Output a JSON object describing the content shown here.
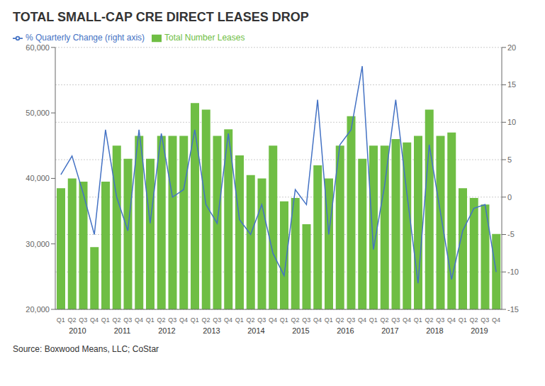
{
  "chart_data": {
    "type": "bar",
    "title": "TOTAL SMALL-CAP CRE DIRECT LEASES DROP",
    "source": "Source: Boxwood Means, LLC; CoStar",
    "categories": [
      "Q1",
      "Q2",
      "Q3",
      "Q4",
      "Q1",
      "Q2",
      "Q3",
      "Q4",
      "Q1",
      "Q2",
      "Q3",
      "Q4",
      "Q1",
      "Q2",
      "Q3",
      "Q4",
      "Q1",
      "Q2",
      "Q3",
      "Q4",
      "Q1",
      "Q2",
      "Q3",
      "Q4",
      "Q1",
      "Q2",
      "Q3",
      "Q4",
      "Q1",
      "Q2",
      "Q3",
      "Q4",
      "Q1",
      "Q2",
      "Q3",
      "Q4",
      "Q1",
      "Q2",
      "Q3",
      "Q4"
    ],
    "category_groups": [
      "2010",
      "2010",
      "2010",
      "2010",
      "2011",
      "2011",
      "2011",
      "2011",
      "2012",
      "2012",
      "2012",
      "2012",
      "2013",
      "2013",
      "2013",
      "2013",
      "2014",
      "2014",
      "2014",
      "2014",
      "2015",
      "2015",
      "2015",
      "2015",
      "2016",
      "2016",
      "2016",
      "2016",
      "2017",
      "2017",
      "2017",
      "2017",
      "2018",
      "2018",
      "2018",
      "2018",
      "2019",
      "2019",
      "2019",
      "2019"
    ],
    "series": [
      {
        "name": "Total Number Leases",
        "type": "bar",
        "color": "#6fbe44",
        "values": [
          38500,
          40000,
          39500,
          29500,
          39500,
          45000,
          43000,
          46500,
          43000,
          46500,
          46500,
          46500,
          51500,
          50500,
          46500,
          47500,
          43500,
          40500,
          40000,
          45000,
          36500,
          37000,
          33000,
          42000,
          40000,
          45000,
          49500,
          43000,
          45000,
          45000,
          46000,
          45500,
          46500,
          50500,
          46500,
          47000,
          38500,
          37000,
          36000,
          31500
        ]
      },
      {
        "name": "% Quarterly Change (right axis)",
        "type": "line",
        "color": "#4472c4",
        "axis": "y2",
        "values": [
          3.0,
          5.5,
          0.5,
          -5.0,
          9.0,
          0.0,
          -4.5,
          9.0,
          -3.5,
          8.5,
          0.0,
          1.0,
          9.0,
          -1.0,
          -3.5,
          8.5,
          -3.0,
          -5.0,
          -1.0,
          -7.5,
          -10.5,
          1.0,
          -1.0,
          13.0,
          -5.0,
          7.0,
          9.0,
          17.5,
          -7.0,
          1.5,
          13.0,
          0.5,
          -11.5,
          7.0,
          -2.0,
          -11.0,
          -4.5,
          -1.5,
          -1.0,
          -10.0
        ]
      }
    ],
    "ylim": [
      20000,
      60000
    ],
    "yticks": [
      {
        "value": 20000,
        "label": "20,000"
      },
      {
        "value": 30000,
        "label": "30,000"
      },
      {
        "value": 40000,
        "label": "40,000"
      },
      {
        "value": 50000,
        "label": "50,000"
      },
      {
        "value": 60000,
        "label": "60,000"
      }
    ],
    "y2lim": [
      -15,
      20
    ],
    "y2ticks": [
      -15,
      -10,
      -5,
      0,
      5,
      10,
      15,
      20
    ],
    "grid": true,
    "legend": "top"
  }
}
